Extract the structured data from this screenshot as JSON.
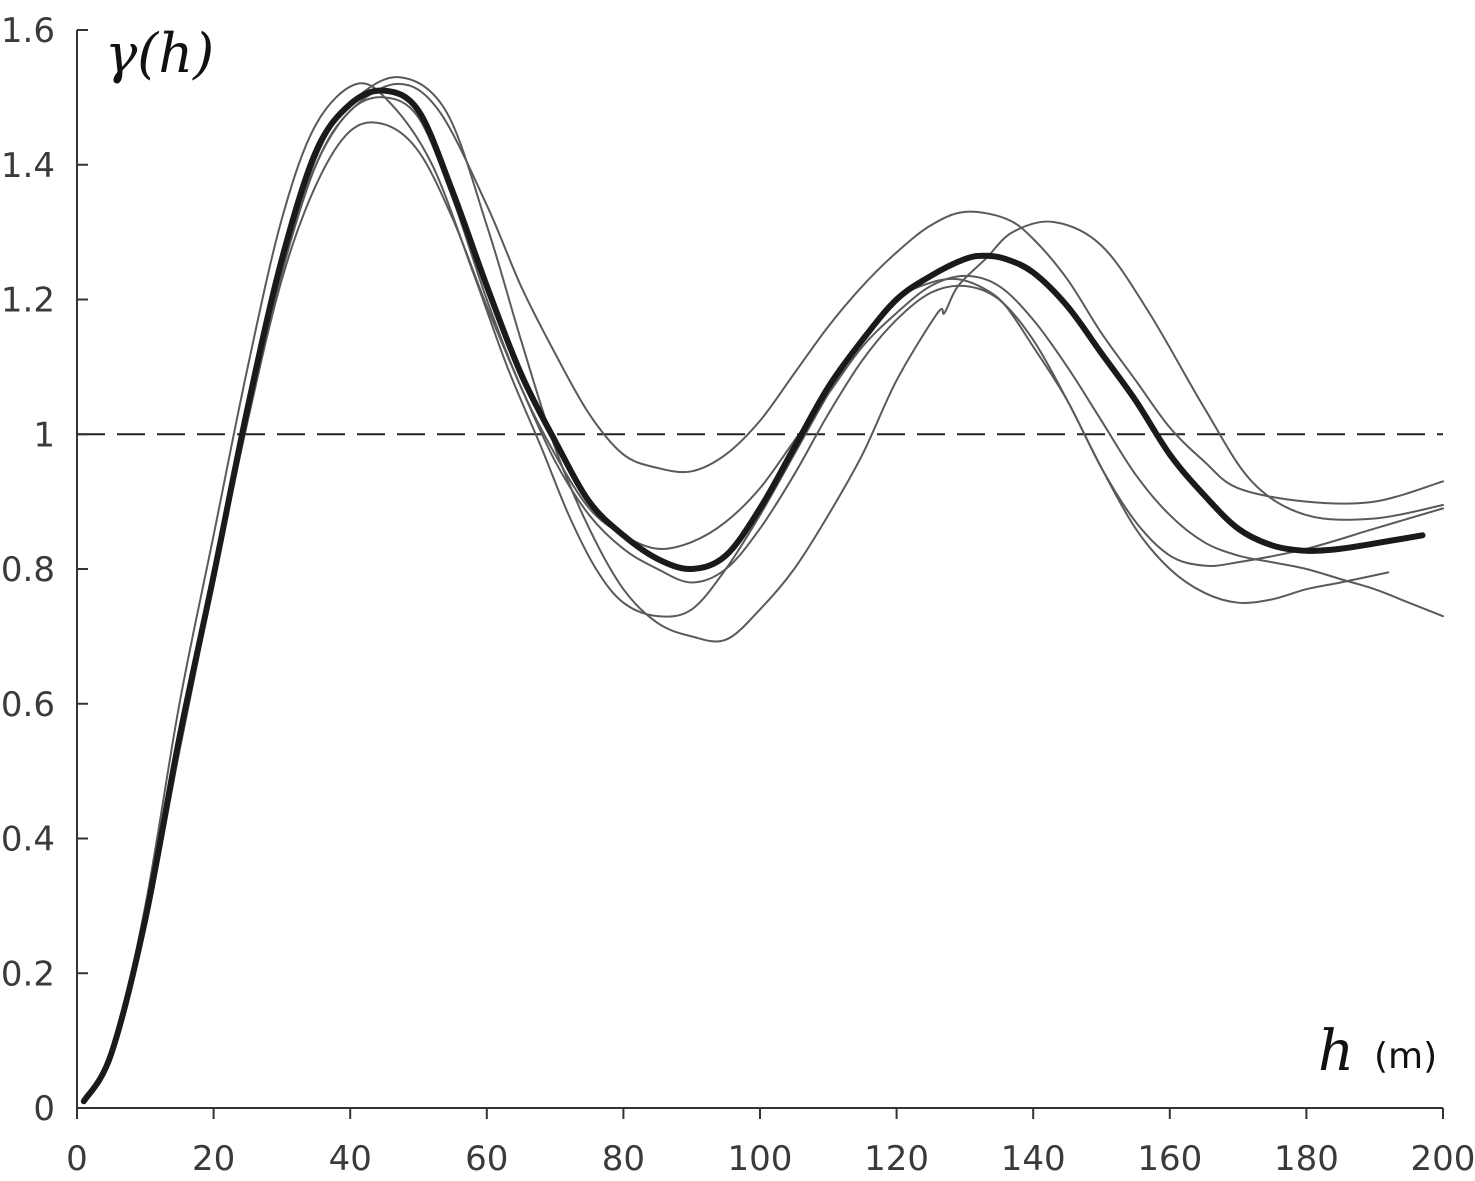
{
  "chart_data": {
    "type": "line",
    "title": "",
    "ylabel": "γ(h)",
    "xlabel": "h",
    "xlabel_unit": "(m)",
    "xlim": [
      0,
      200
    ],
    "ylim": [
      0,
      1.6
    ],
    "x_ticks": [
      "0",
      "20",
      "40",
      "60",
      "80",
      "100",
      "120",
      "140",
      "160",
      "180",
      "200"
    ],
    "y_ticks": [
      "0",
      "0.2",
      "0.4",
      "0.6",
      "0.8",
      "1",
      "1.2",
      "1.4",
      "1.6"
    ],
    "grid": false,
    "legend": "none",
    "reference_line": {
      "y": 1,
      "style": "dashed"
    },
    "colors": {
      "mean": "#1a1a1a",
      "realization": "#5a5a5a",
      "axis": "#333333"
    },
    "series": [
      {
        "role": "mean",
        "x": [
          1,
          5,
          10,
          15,
          20,
          25,
          30,
          35,
          40,
          45,
          50,
          55,
          60,
          65,
          70,
          75,
          80,
          85,
          90,
          95,
          100,
          105,
          110,
          115,
          120,
          125,
          130,
          133,
          136,
          140,
          145,
          150,
          155,
          160,
          165,
          170,
          175,
          180,
          185,
          190,
          197
        ],
        "y": [
          0.01,
          0.08,
          0.28,
          0.55,
          0.79,
          1.04,
          1.26,
          1.42,
          1.49,
          1.51,
          1.48,
          1.36,
          1.22,
          1.09,
          0.99,
          0.9,
          0.85,
          0.815,
          0.8,
          0.82,
          0.89,
          0.98,
          1.07,
          1.14,
          1.2,
          1.235,
          1.26,
          1.265,
          1.26,
          1.24,
          1.19,
          1.12,
          1.05,
          0.97,
          0.91,
          0.86,
          0.835,
          0.827,
          0.83,
          0.838,
          0.85
        ]
      },
      {
        "role": "realization",
        "x": [
          1,
          5,
          10,
          15,
          20,
          25,
          30,
          35,
          40,
          47,
          53,
          60,
          65,
          70,
          75,
          80,
          85,
          90,
          95,
          100,
          105,
          110,
          115,
          120,
          125,
          130,
          136,
          140,
          145,
          150,
          155,
          160,
          165,
          170,
          180,
          190,
          200
        ],
        "y": [
          0.01,
          0.08,
          0.28,
          0.55,
          0.8,
          1.03,
          1.24,
          1.4,
          1.48,
          1.52,
          1.48,
          1.34,
          1.22,
          1.12,
          1.03,
          0.97,
          0.95,
          0.945,
          0.97,
          1.02,
          1.09,
          1.16,
          1.22,
          1.27,
          1.31,
          1.33,
          1.32,
          1.29,
          1.23,
          1.15,
          1.08,
          1.01,
          0.96,
          0.92,
          0.9,
          0.9,
          0.93
        ]
      },
      {
        "role": "realization",
        "x": [
          1,
          5,
          10,
          15,
          20,
          25,
          30,
          35,
          41,
          46,
          52,
          58,
          63,
          68,
          72,
          76,
          80,
          85,
          90,
          95,
          100,
          105,
          110,
          115,
          120,
          125,
          129,
          133,
          136,
          140,
          145,
          150,
          155,
          160,
          165,
          170,
          180,
          190,
          200
        ],
        "y": [
          0.01,
          0.08,
          0.3,
          0.6,
          0.85,
          1.1,
          1.32,
          1.46,
          1.52,
          1.49,
          1.4,
          1.24,
          1.1,
          0.98,
          0.88,
          0.8,
          0.75,
          0.73,
          0.74,
          0.8,
          0.88,
          0.97,
          1.06,
          1.14,
          1.2,
          1.225,
          1.23,
          1.215,
          1.19,
          1.13,
          1.05,
          0.95,
          0.87,
          0.82,
          0.805,
          0.81,
          0.83,
          0.86,
          0.89
        ]
      },
      {
        "role": "realization",
        "x": [
          1,
          5,
          10,
          15,
          20,
          25,
          30,
          35,
          40,
          45,
          50,
          55,
          60,
          65,
          70,
          75,
          80,
          85,
          90,
          95,
          100,
          105,
          110,
          115,
          120,
          125,
          130,
          135,
          140,
          145,
          150,
          155,
          160,
          165,
          170,
          175,
          180,
          185,
          192
        ],
        "y": [
          0.01,
          0.08,
          0.27,
          0.53,
          0.78,
          1.02,
          1.23,
          1.37,
          1.45,
          1.46,
          1.42,
          1.32,
          1.19,
          1.07,
          0.96,
          0.88,
          0.83,
          0.8,
          0.78,
          0.8,
          0.86,
          0.94,
          1.03,
          1.11,
          1.17,
          1.21,
          1.22,
          1.2,
          1.14,
          1.05,
          0.95,
          0.86,
          0.8,
          0.765,
          0.75,
          0.755,
          0.77,
          0.78,
          0.795
        ]
      },
      {
        "role": "realization",
        "x": [
          1,
          5,
          10,
          15,
          20,
          25,
          30,
          35,
          40,
          47,
          54,
          60,
          65,
          70,
          75,
          80,
          85,
          90,
          95,
          100,
          105,
          110,
          115,
          120,
          126,
          127,
          129,
          133,
          137,
          143,
          150,
          157,
          165,
          172,
          180,
          190,
          200
        ],
        "y": [
          0.01,
          0.08,
          0.28,
          0.55,
          0.8,
          1.03,
          1.24,
          1.41,
          1.49,
          1.53,
          1.48,
          1.31,
          1.14,
          0.98,
          0.86,
          0.77,
          0.72,
          0.7,
          0.695,
          0.74,
          0.8,
          0.88,
          0.97,
          1.08,
          1.18,
          1.18,
          1.22,
          1.26,
          1.3,
          1.315,
          1.28,
          1.18,
          1.04,
          0.93,
          0.88,
          0.875,
          0.895
        ]
      },
      {
        "role": "realization",
        "x": [
          1,
          5,
          10,
          15,
          20,
          25,
          30,
          35,
          40,
          45,
          50,
          55,
          60,
          65,
          70,
          75,
          80,
          85,
          90,
          95,
          100,
          105,
          110,
          115,
          120,
          125,
          130,
          135,
          140,
          145,
          150,
          155,
          160,
          165,
          170,
          175,
          180,
          185,
          190,
          195,
          200
        ],
        "y": [
          0.01,
          0.08,
          0.28,
          0.55,
          0.8,
          1.04,
          1.25,
          1.4,
          1.48,
          1.5,
          1.47,
          1.35,
          1.2,
          1.07,
          0.97,
          0.89,
          0.85,
          0.83,
          0.84,
          0.87,
          0.92,
          0.99,
          1.06,
          1.13,
          1.18,
          1.22,
          1.235,
          1.22,
          1.17,
          1.1,
          1.02,
          0.94,
          0.88,
          0.84,
          0.82,
          0.81,
          0.8,
          0.785,
          0.77,
          0.75,
          0.73
        ]
      }
    ]
  }
}
